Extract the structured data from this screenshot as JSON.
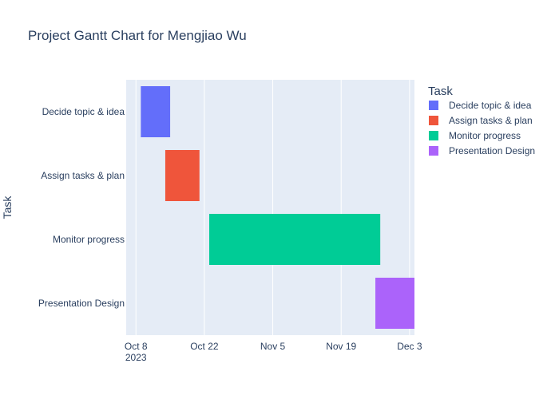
{
  "chart_data": {
    "type": "gantt",
    "title": "Project Gantt Chart for Mengjiao Wu",
    "ylabel": "Task",
    "xlabel": "",
    "plot_background": "#e5ecf6",
    "grid": true,
    "legend": {
      "title": "Task",
      "placement": "right"
    },
    "x_range": [
      "2023-10-06",
      "2023-12-04"
    ],
    "x_ticks": [
      {
        "date": "2023-10-08",
        "label": "Oct 8",
        "sublabel": "2023"
      },
      {
        "date": "2023-10-22",
        "label": "Oct 22",
        "sublabel": ""
      },
      {
        "date": "2023-11-05",
        "label": "Nov 5",
        "sublabel": ""
      },
      {
        "date": "2023-11-19",
        "label": "Nov 19",
        "sublabel": ""
      },
      {
        "date": "2023-12-03",
        "label": "Dec 3",
        "sublabel": ""
      }
    ],
    "categories": [
      "Decide topic & idea",
      "Assign tasks & plan",
      "Monitor progress",
      "Presentation Design"
    ],
    "tasks": [
      {
        "name": "Decide topic & idea",
        "start": "2023-10-09",
        "end": "2023-10-15",
        "color": "#636efa"
      },
      {
        "name": "Assign tasks & plan",
        "start": "2023-10-14",
        "end": "2023-10-21",
        "color": "#ef553b"
      },
      {
        "name": "Monitor progress",
        "start": "2023-10-23",
        "end": "2023-11-27",
        "color": "#00cc96"
      },
      {
        "name": "Presentation Design",
        "start": "2023-11-26",
        "end": "2023-12-04",
        "color": "#ab63fa"
      }
    ]
  }
}
